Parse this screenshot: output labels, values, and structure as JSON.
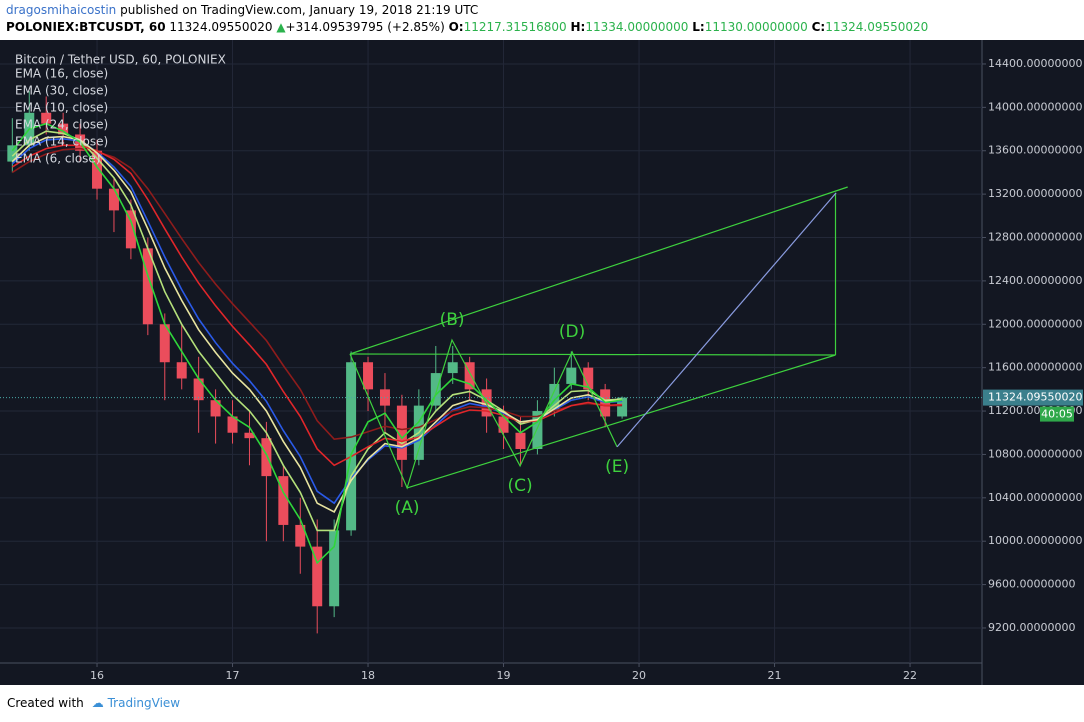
{
  "header": {
    "author": "dragosmihaicostin",
    "published": "published on TradingView.com, January 19, 2018 21:19 UTC",
    "symbol": "POLONIEX:BTCUSDT, 60",
    "last": "11324.09550020",
    "change": "+314.09539795 (+2.85%)",
    "o_label": "O:",
    "o": "11217.31516800",
    "h_label": "H:",
    "h": "11334.00000000",
    "l_label": "L:",
    "l": "11130.00000000",
    "c_label": "C:",
    "c": "11324.09550020"
  },
  "footer": {
    "created": "Created with",
    "brand": "TradingView"
  },
  "chart_data": {
    "type": "candlestick",
    "title": "Bitcoin / Tether USD, 60, POLONIEX",
    "up_color": "#53b987",
    "down_color": "#eb4d5c",
    "grid": true,
    "x": [
      15.375,
      15.5,
      15.625,
      15.75,
      15.875,
      16,
      16.125,
      16.25,
      16.375,
      16.5,
      16.625,
      16.75,
      16.875,
      17,
      17.125,
      17.25,
      17.375,
      17.5,
      17.625,
      17.75,
      17.875,
      18,
      18.125,
      18.25,
      18.375,
      18.5,
      18.625,
      18.75,
      18.875,
      19,
      19.125,
      19.25,
      19.375,
      19.5,
      19.625,
      19.75,
      19.875
    ],
    "open": [
      13500,
      13650,
      13950,
      13850,
      13750,
      13600,
      13250,
      13050,
      12700,
      12000,
      11650,
      11500,
      11300,
      11150,
      11000,
      10950,
      10600,
      10150,
      9950,
      9400,
      10100,
      11650,
      11400,
      11250,
      10750,
      11250,
      11550,
      11650,
      11400,
      11150,
      11000,
      10850,
      11200,
      11450,
      11600,
      11400,
      11150
    ],
    "high": [
      13900,
      14150,
      14100,
      13950,
      13850,
      13700,
      13350,
      13150,
      12800,
      12100,
      12000,
      11700,
      11400,
      11300,
      11200,
      11100,
      10700,
      10400,
      10200,
      10200,
      11750,
      11700,
      11550,
      11350,
      11400,
      11800,
      11800,
      11700,
      11500,
      11250,
      11150,
      11300,
      11600,
      11750,
      11650,
      11450,
      11334
    ],
    "low": [
      13400,
      13600,
      13750,
      13650,
      13500,
      13150,
      12850,
      12600,
      11900,
      11300,
      11400,
      11000,
      10900,
      10900,
      10700,
      10000,
      10000,
      9700,
      9150,
      9300,
      10050,
      11200,
      11000,
      10500,
      10700,
      11200,
      11450,
      11300,
      11000,
      10850,
      10700,
      10800,
      11150,
      11400,
      11300,
      11050,
      11130
    ],
    "close": [
      13650,
      13950,
      13850,
      13750,
      13600,
      13250,
      13050,
      12700,
      12000,
      11650,
      11500,
      11300,
      11150,
      11000,
      10950,
      10600,
      10150,
      9950,
      9400,
      10100,
      11650,
      11400,
      11250,
      10750,
      11250,
      11550,
      11650,
      11400,
      11150,
      11000,
      10850,
      11200,
      11450,
      11600,
      11400,
      11150,
      11324.0955002
    ],
    "last_price_label": "11324.09550020",
    "countdown": "40:05",
    "series": [
      {
        "name": "EMA (16, close)",
        "color": "#2a5ae8",
        "values": [
          13480,
          13620,
          13700,
          13710,
          13690,
          13590,
          13450,
          13270,
          12950,
          12620,
          12320,
          12050,
          11830,
          11640,
          11480,
          11290,
          11020,
          10780,
          10460,
          10350,
          10580,
          10750,
          10880,
          10860,
          10930,
          11070,
          11210,
          11270,
          11240,
          11180,
          11100,
          11120,
          11210,
          11300,
          11330,
          11280,
          11290
        ]
      },
      {
        "name": "EMA (30, close)",
        "color": "#8e1c1c",
        "values": [
          13400,
          13500,
          13570,
          13610,
          13620,
          13590,
          13540,
          13440,
          13250,
          13020,
          12790,
          12570,
          12370,
          12190,
          12020,
          11850,
          11620,
          11400,
          11110,
          10940,
          10960,
          11010,
          11060,
          11030,
          11050,
          11120,
          11200,
          11240,
          11230,
          11200,
          11150,
          11150,
          11200,
          11250,
          11270,
          11250,
          11250
        ]
      },
      {
        "name": "EMA (10, close)",
        "color": "#b4e07a",
        "values": [
          13550,
          13700,
          13780,
          13760,
          13700,
          13530,
          13350,
          13100,
          12700,
          12300,
          12000,
          11750,
          11550,
          11350,
          11200,
          11000,
          10700,
          10450,
          10100,
          10100,
          10600,
          10850,
          11000,
          10900,
          11000,
          11200,
          11350,
          11380,
          11300,
          11200,
          11080,
          11120,
          11250,
          11380,
          11390,
          11300,
          11310
        ]
      },
      {
        "name": "EMA (24, close)",
        "color": "#e0262a",
        "values": [
          13450,
          13550,
          13620,
          13650,
          13650,
          13600,
          13520,
          13390,
          13150,
          12880,
          12620,
          12380,
          12170,
          11980,
          11810,
          11630,
          11380,
          11150,
          10850,
          10700,
          10780,
          10870,
          10950,
          10920,
          10960,
          11060,
          11160,
          11210,
          11200,
          11160,
          11100,
          11110,
          11180,
          11250,
          11280,
          11250,
          11260
        ]
      },
      {
        "name": "EMA (14, close)",
        "color": "#e8e4a0",
        "values": [
          13500,
          13650,
          13720,
          13730,
          13700,
          13580,
          13420,
          13220,
          12880,
          12520,
          12220,
          11950,
          11740,
          11550,
          11400,
          11200,
          10920,
          10680,
          10350,
          10270,
          10560,
          10760,
          10900,
          10870,
          10950,
          11100,
          11250,
          11300,
          11260,
          11190,
          11100,
          11120,
          11220,
          11320,
          11350,
          11290,
          11300
        ]
      },
      {
        "name": "EMA (6, close)",
        "color": "#2fd63a",
        "values": [
          13600,
          13800,
          13850,
          13780,
          13680,
          13450,
          13250,
          12950,
          12450,
          12000,
          11750,
          11500,
          11300,
          11150,
          11050,
          10800,
          10450,
          10200,
          9800,
          9950,
          10800,
          11100,
          11180,
          10950,
          11100,
          11350,
          11500,
          11450,
          11300,
          11150,
          11000,
          11100,
          11300,
          11450,
          11420,
          11280,
          11300
        ]
      }
    ],
    "drawings": [
      {
        "color": "#3ed13e",
        "x": [
          17.867,
          21.54
        ],
        "y": [
          11726,
          13266
        ]
      },
      {
        "color": "#3ed13e",
        "x": [
          18.288,
          21.45
        ],
        "y": [
          10491,
          11717
        ]
      },
      {
        "color": "#3ed13e",
        "x": [
          17.867,
          21.45
        ],
        "y": [
          11726,
          11717
        ]
      },
      {
        "color": "#3ed13e",
        "x": [
          21.45,
          21.45
        ],
        "y": [
          11717,
          13211
        ]
      },
      {
        "color": "#3ed13e",
        "x": [
          17.867,
          18.288,
          18.62,
          19.122,
          19.506,
          19.838
        ],
        "y": [
          11726,
          10491,
          11855,
          10694,
          11745,
          10869
        ]
      },
      {
        "color": "#8a9ce0",
        "x": [
          19.838,
          21.454
        ],
        "y": [
          10869,
          13211
        ]
      }
    ],
    "waves": {
      "labels": [
        "(A)",
        "(B)",
        "(C)",
        "(D)",
        "(E)"
      ],
      "x": [
        18.288,
        18.62,
        19.122,
        19.506,
        19.838
      ],
      "y": [
        10491,
        11855,
        10694,
        11745,
        10869
      ],
      "color": "#3ed13e"
    },
    "xlim": [
      15.284,
      22.531
    ],
    "xticks": [
      16,
      17,
      18,
      19,
      20,
      21,
      22
    ],
    "ylim": [
      8877,
      14621
    ],
    "yticks": [
      {
        "value": 9200,
        "label": "9200.00000000"
      },
      {
        "value": 9600,
        "label": "9600.00000000"
      },
      {
        "value": 10000,
        "label": "10000.00000000"
      },
      {
        "value": 10400,
        "label": "10400.00000000"
      },
      {
        "value": 10800,
        "label": "10800.00000000"
      },
      {
        "value": 11200,
        "label": "11200.00000000"
      },
      {
        "value": 11600,
        "label": "11600.00000000"
      },
      {
        "value": 12000,
        "label": "12000.00000000"
      },
      {
        "value": 12400,
        "label": "12400.00000000"
      },
      {
        "value": 12800,
        "label": "12800.00000000"
      },
      {
        "value": 13200,
        "label": "13200.00000000"
      },
      {
        "value": 13600,
        "label": "13600.00000000"
      },
      {
        "value": 14000,
        "label": "14000.00000000"
      },
      {
        "value": 14400,
        "label": "14400.00000000"
      }
    ]
  }
}
